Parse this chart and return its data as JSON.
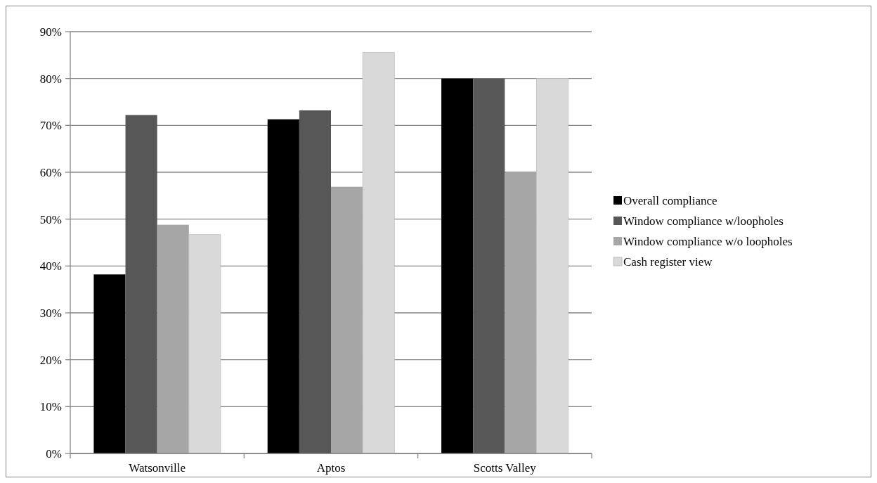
{
  "chart_data": {
    "type": "bar",
    "categories": [
      "Watsonville",
      "Aptos",
      "Scotts Valley"
    ],
    "series": [
      {
        "name": "Overall compliance",
        "color": "#000000",
        "values": [
          38.2,
          71.3,
          80
        ]
      },
      {
        "name": "Window compliance w/loopholes",
        "color": "#575757",
        "values": [
          72.2,
          73.2,
          80
        ]
      },
      {
        "name": "Window compliance w/o loopholes",
        "color": "#a6a6a6",
        "values": [
          48.8,
          56.9,
          60
        ]
      },
      {
        "name": "Cash register view",
        "color": "#d9d9d9",
        "values": [
          46.7,
          85.6,
          80
        ]
      }
    ],
    "ylim": [
      0,
      90
    ],
    "yticks": [
      {
        "value": 0,
        "label": "0%"
      },
      {
        "value": 10,
        "label": "10%"
      },
      {
        "value": 20,
        "label": "20%"
      },
      {
        "value": 30,
        "label": "30%"
      },
      {
        "value": 40,
        "label": "40%"
      },
      {
        "value": 50,
        "label": "50%"
      },
      {
        "value": 60,
        "label": "60%"
      },
      {
        "value": 70,
        "label": "70%"
      },
      {
        "value": 80,
        "label": "80%"
      },
      {
        "value": 90,
        "label": "90%"
      }
    ],
    "grid": "y",
    "legend": "right"
  }
}
